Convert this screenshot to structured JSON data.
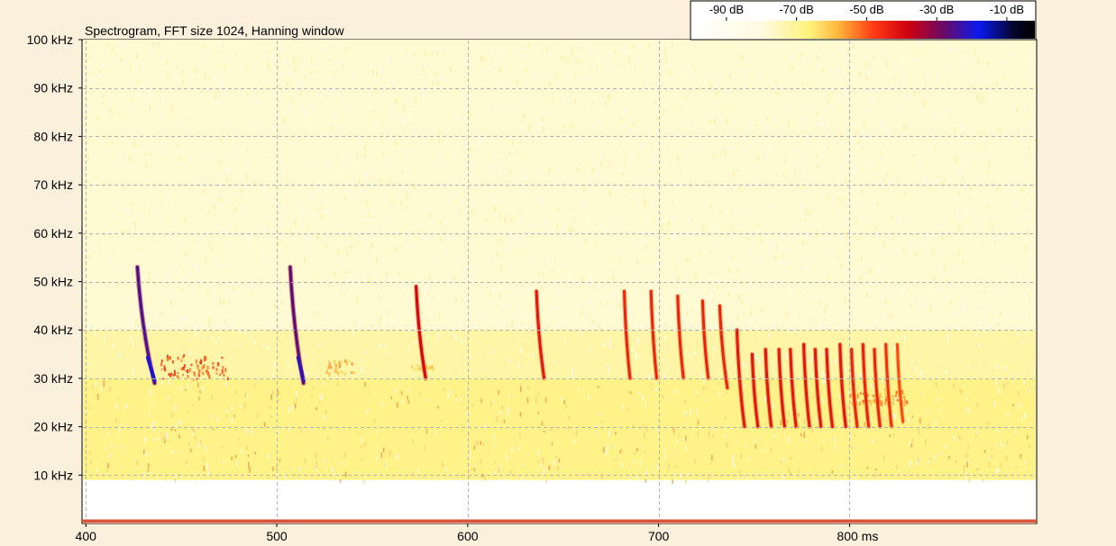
{
  "chart_data": {
    "type": "heatmap",
    "title": "Spectrogram, FFT size 1024, Hanning window",
    "x_unit": "ms",
    "y_unit": "kHz",
    "xlim": [
      398,
      898
    ],
    "ylim": [
      0,
      100
    ],
    "x_ticks": [
      {
        "value": 400,
        "label": "400"
      },
      {
        "value": 500,
        "label": "500"
      },
      {
        "value": 600,
        "label": "600"
      },
      {
        "value": 700,
        "label": "700"
      },
      {
        "value": 800,
        "label": "800 ms"
      }
    ],
    "y_ticks": [
      {
        "value": 100,
        "label": "100 kHz"
      },
      {
        "value": 90,
        "label": "90 kHz"
      },
      {
        "value": 80,
        "label": "80 kHz"
      },
      {
        "value": 70,
        "label": "70 kHz"
      },
      {
        "value": 60,
        "label": "60 kHz"
      },
      {
        "value": 50,
        "label": "50 kHz"
      },
      {
        "value": 40,
        "label": "40 kHz"
      },
      {
        "value": 30,
        "label": "30 kHz"
      },
      {
        "value": 20,
        "label": "20 kHz"
      },
      {
        "value": 10,
        "label": "10 kHz"
      }
    ],
    "grid": true,
    "colorbar": {
      "labels": [
        "-90 dB",
        "-70 dB",
        "-50 dB",
        "-30 dB",
        "-10 dB"
      ],
      "label_values": [
        -90,
        -70,
        -50,
        -30,
        -10
      ],
      "range": [
        -100,
        -2
      ],
      "stops": [
        {
          "db": -100,
          "color": "#ffffff"
        },
        {
          "db": -80,
          "color": "#fffbe0"
        },
        {
          "db": -66,
          "color": "#fff17a"
        },
        {
          "db": -58,
          "color": "#ffb43c"
        },
        {
          "db": -48,
          "color": "#ff3a14"
        },
        {
          "db": -38,
          "color": "#cc0012"
        },
        {
          "db": -28,
          "color": "#6a0a66"
        },
        {
          "db": -18,
          "color": "#0a18ee"
        },
        {
          "db": -8,
          "color": "#05052a"
        },
        {
          "db": -2,
          "color": "#000000"
        }
      ]
    },
    "colors": {
      "background": "#fbf0db",
      "noise_high": "#fffcd6",
      "noise_mid": "#fff3a0",
      "noise_low": "#ffee8c",
      "grid": "#b4b4b4",
      "baseline": "#d8533a"
    },
    "noise_floor": [
      {
        "f_from": 0,
        "f_to": 9,
        "db": -100
      },
      {
        "f_from": 9,
        "f_to": 30,
        "db": -68
      },
      {
        "f_from": 30,
        "f_to": 40,
        "db": -72
      },
      {
        "f_from": 40,
        "f_to": 100,
        "db": -78
      }
    ],
    "calls": [
      {
        "t_start": 427,
        "t_end": 436,
        "f_start": 53,
        "f_end": 29,
        "db": -20
      },
      {
        "t_start": 507,
        "t_end": 514,
        "f_start": 53,
        "f_end": 29,
        "db": -22
      },
      {
        "t_start": 573,
        "t_end": 578,
        "f_start": 49,
        "f_end": 30,
        "db": -35
      },
      {
        "t_start": 636,
        "t_end": 640,
        "f_start": 48,
        "f_end": 30,
        "db": -38
      },
      {
        "t_start": 682,
        "t_end": 685,
        "f_start": 48,
        "f_end": 30,
        "db": -40
      },
      {
        "t_start": 696,
        "t_end": 699,
        "f_start": 48,
        "f_end": 30,
        "db": -40
      },
      {
        "t_start": 710,
        "t_end": 713,
        "f_start": 47,
        "f_end": 30,
        "db": -40
      },
      {
        "t_start": 723,
        "t_end": 726,
        "f_start": 46,
        "f_end": 30,
        "db": -40
      },
      {
        "t_start": 732,
        "t_end": 736,
        "f_start": 45,
        "f_end": 28,
        "db": -40
      },
      {
        "t_start": 741,
        "t_end": 745,
        "f_start": 40,
        "f_end": 20,
        "db": -38
      },
      {
        "t_start": 749,
        "t_end": 752,
        "f_start": 35,
        "f_end": 20,
        "db": -38
      },
      {
        "t_start": 756,
        "t_end": 759,
        "f_start": 36,
        "f_end": 20,
        "db": -38
      },
      {
        "t_start": 763,
        "t_end": 766,
        "f_start": 36,
        "f_end": 20,
        "db": -38
      },
      {
        "t_start": 769,
        "t_end": 772,
        "f_start": 36,
        "f_end": 20,
        "db": -38
      },
      {
        "t_start": 776,
        "t_end": 779,
        "f_start": 37,
        "f_end": 20,
        "db": -38
      },
      {
        "t_start": 782,
        "t_end": 785,
        "f_start": 36,
        "f_end": 20,
        "db": -38
      },
      {
        "t_start": 788,
        "t_end": 791,
        "f_start": 36,
        "f_end": 20,
        "db": -38
      },
      {
        "t_start": 795,
        "t_end": 798,
        "f_start": 37,
        "f_end": 20,
        "db": -38
      },
      {
        "t_start": 801,
        "t_end": 804,
        "f_start": 36,
        "f_end": 20,
        "db": -40
      },
      {
        "t_start": 807,
        "t_end": 810,
        "f_start": 37,
        "f_end": 20,
        "db": -40
      },
      {
        "t_start": 813,
        "t_end": 816,
        "f_start": 36,
        "f_end": 20,
        "db": -40
      },
      {
        "t_start": 819,
        "t_end": 822,
        "f_start": 37,
        "f_end": 20,
        "db": -42
      },
      {
        "t_start": 825,
        "t_end": 828,
        "f_start": 37,
        "f_end": 21,
        "db": -45
      }
    ],
    "patches": [
      {
        "t_start": 438,
        "t_end": 474,
        "f_low": 30,
        "f_high": 35,
        "db": -50
      },
      {
        "t_start": 525,
        "t_end": 540,
        "f_low": 31,
        "f_high": 34,
        "db": -58
      },
      {
        "t_start": 570,
        "t_end": 585,
        "f_low": 32,
        "f_high": 33,
        "db": -62
      },
      {
        "t_start": 800,
        "t_end": 830,
        "f_low": 25,
        "f_high": 28,
        "db": -55
      }
    ]
  }
}
